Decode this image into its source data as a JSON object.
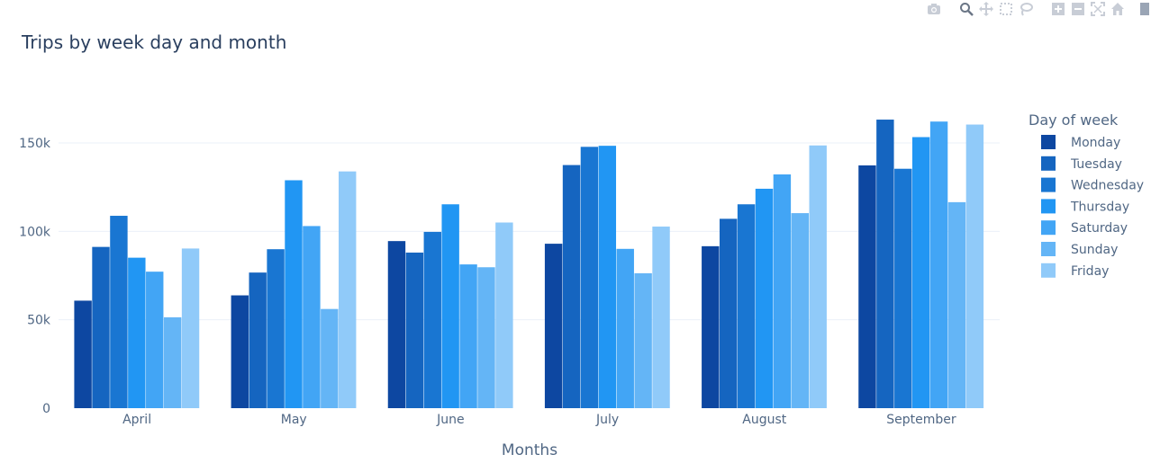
{
  "modebar": {
    "buttons": [
      "camera-icon",
      "zoom-icon",
      "pan-icon",
      "box-select-icon",
      "lasso-icon",
      "zoom-in-icon",
      "zoom-out-icon",
      "autoscale-icon",
      "home-icon"
    ],
    "color": "#c8cdd6"
  },
  "chart_data": {
    "type": "bar",
    "title": "Trips by week day and month",
    "xlabel": "Months",
    "ylabel": "",
    "categories": [
      "April",
      "May",
      "June",
      "July",
      "August",
      "September"
    ],
    "ylim": [
      0,
      180000
    ],
    "yticks": [
      0,
      50000,
      100000,
      150000
    ],
    "ytick_labels": [
      "0",
      "50k",
      "100k",
      "150k"
    ],
    "legend_title": "Day of week",
    "legend_position": "right",
    "series": [
      {
        "name": "Monday",
        "color": "#0d47a1",
        "values": [
          60800,
          63800,
          94500,
          93000,
          91600,
          137300
        ]
      },
      {
        "name": "Tuesday",
        "color": "#1565c0",
        "values": [
          91200,
          76700,
          88000,
          137500,
          107100,
          163200
        ]
      },
      {
        "name": "Wednesday",
        "color": "#1976d2",
        "values": [
          108800,
          89900,
          99700,
          147800,
          115300,
          135400
        ]
      },
      {
        "name": "Thursday",
        "color": "#2196f3",
        "values": [
          85100,
          128900,
          115300,
          148400,
          124100,
          153300
        ]
      },
      {
        "name": "Saturday",
        "color": "#42a5f5",
        "values": [
          77200,
          103000,
          81300,
          90100,
          132200,
          162100
        ]
      },
      {
        "name": "Sunday",
        "color": "#64b5f6",
        "values": [
          51400,
          56100,
          79700,
          76300,
          110300,
          116500
        ]
      },
      {
        "name": "Friday",
        "color": "#90caf9",
        "values": [
          90300,
          133900,
          105000,
          102700,
          148600,
          160400
        ]
      }
    ]
  }
}
